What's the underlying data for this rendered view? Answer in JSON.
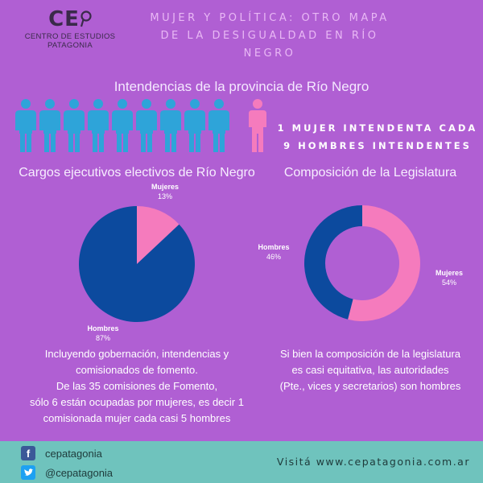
{
  "logo": {
    "mark": "CE",
    "line1": "CENTRO DE ESTUDIOS",
    "line2": "PATAGONIA"
  },
  "header": {
    "title_lines": [
      "MUJER Y POLÍTICA: OTRO MAPA",
      "DE LA DESIGUALDAD EN RÍO",
      "NEGRO"
    ]
  },
  "intendencias": {
    "title": "Intendencias de la provincia de Río Negro",
    "men_count": 9,
    "women_count": 1,
    "stat_lines": [
      "1 MUJER INTENDENTA CADA",
      "9 HOMBRES INTENDENTES"
    ]
  },
  "colors": {
    "mujeres": "#f57bbd",
    "hombres": "#0c4a9e",
    "men_icon": "#2ea4d9",
    "woman_icon": "#f57bbd",
    "background": "#b05fd3",
    "footer": "#6fc3bd"
  },
  "chart_data": [
    {
      "type": "pie",
      "title": "Cargos ejecutivos electivos de Río Negro",
      "labels": [
        "Mujeres",
        "Hombres"
      ],
      "values": [
        13,
        87
      ],
      "value_labels": [
        "13%",
        "87%"
      ]
    },
    {
      "type": "pie",
      "variant": "donut",
      "title": "Composición de la Legislatura",
      "labels": [
        "Mujeres",
        "Hombres"
      ],
      "values": [
        54,
        46
      ],
      "value_labels": [
        "54%",
        "46%"
      ]
    }
  ],
  "descriptions": {
    "left": [
      "Incluyendo gobernación, intendencias y",
      "comisionados de fomento.",
      "De las 35 comisiones de Fomento,",
      "sólo 6 están ocupadas por mujeres, es decir 1",
      "comisionada mujer cada casi 5 hombres"
    ],
    "right": [
      "Si bien la composición de la legislatura",
      "es casi equitativa, las autoridades",
      "(Pte., vices y secretarios) son hombres"
    ]
  },
  "footer": {
    "facebook_icon": "facebook-icon",
    "facebook_handle": "cepatagonia",
    "twitter_icon": "twitter-icon",
    "twitter_handle": "@cepatagonia",
    "visit_text": "Visitá www.cepatagonia.com.ar"
  }
}
